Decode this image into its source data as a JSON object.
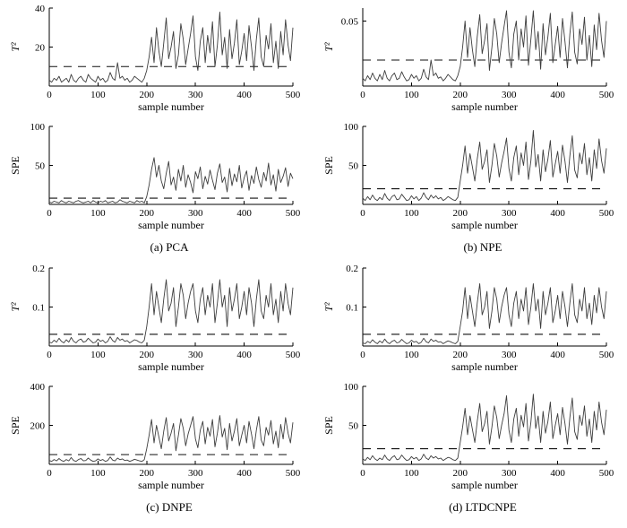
{
  "figure": {
    "captions": [
      "(a) PCA",
      "(b) NPE",
      "(c) DNPE",
      "(d) LTDCNPE"
    ],
    "line_color": "#3d3d3d",
    "threshold_color": "#111111"
  },
  "chart_data": [
    {
      "name": "pca-t2",
      "type": "line",
      "title": "",
      "ylabel": "T²",
      "ylabel_italic": true,
      "xlabel": "sample number",
      "xlim": [
        0,
        500
      ],
      "ylim": [
        0,
        40
      ],
      "xticks": [
        0,
        100,
        200,
        300,
        400,
        500
      ],
      "yticks": [
        20,
        40
      ],
      "threshold": 10,
      "threshold_style": "dashed",
      "x_step": 5,
      "values": [
        3,
        2,
        4,
        3,
        5,
        2,
        3,
        4,
        2,
        6,
        3,
        2,
        4,
        5,
        3,
        2,
        6,
        4,
        3,
        2,
        5,
        3,
        4,
        2,
        3,
        7,
        4,
        3,
        12,
        4,
        5,
        3,
        4,
        2,
        3,
        5,
        4,
        3,
        2,
        4,
        8,
        15,
        25,
        12,
        30,
        18,
        10,
        22,
        35,
        14,
        20,
        28,
        9,
        16,
        32,
        24,
        11,
        19,
        27,
        36,
        15,
        8,
        23,
        30,
        12,
        26,
        17,
        33,
        10,
        21,
        38,
        16,
        25,
        9,
        29,
        14,
        22,
        34,
        11,
        18,
        27,
        13,
        31,
        20,
        8,
        24,
        35,
        15,
        10,
        26,
        19,
        32,
        12,
        23,
        9,
        28,
        16,
        34,
        21,
        13,
        30
      ]
    },
    {
      "name": "pca-spe",
      "type": "line",
      "title": "",
      "ylabel": "SPE",
      "ylabel_italic": false,
      "xlabel": "sample number",
      "xlim": [
        0,
        500
      ],
      "ylim": [
        0,
        100
      ],
      "xticks": [
        0,
        100,
        200,
        300,
        400,
        500
      ],
      "yticks": [
        50,
        100
      ],
      "threshold": 8,
      "threshold_style": "dashed",
      "x_step": 5,
      "values": [
        3,
        2,
        4,
        3,
        2,
        5,
        3,
        2,
        4,
        3,
        2,
        4,
        5,
        3,
        2,
        3,
        4,
        2,
        5,
        3,
        2,
        4,
        3,
        5,
        2,
        3,
        4,
        2,
        3,
        6,
        4,
        3,
        2,
        4,
        3,
        2,
        5,
        3,
        4,
        2,
        10,
        25,
        45,
        60,
        35,
        50,
        30,
        20,
        40,
        55,
        25,
        35,
        18,
        45,
        30,
        50,
        22,
        38,
        28,
        15,
        42,
        33,
        48,
        20,
        36,
        26,
        44,
        31,
        19,
        40,
        52,
        28,
        35,
        16,
        46,
        24,
        39,
        29,
        50,
        21,
        34,
        43,
        18,
        37,
        27,
        48,
        32,
        22,
        41,
        30,
        53,
        25,
        38,
        17,
        45,
        28,
        36,
        47,
        23,
        40,
        33
      ]
    },
    {
      "name": "npe-t2",
      "type": "line",
      "title": "",
      "ylabel": "T²",
      "ylabel_italic": true,
      "xlabel": "sample number",
      "xlim": [
        0,
        500
      ],
      "ylim": [
        0,
        0.06
      ],
      "xticks": [
        0,
        100,
        200,
        300,
        400,
        500
      ],
      "yticks": [
        0.05
      ],
      "threshold": 0.02,
      "threshold_style": "dashed",
      "x_step": 5,
      "values": [
        0.006,
        0.004,
        0.008,
        0.005,
        0.01,
        0.006,
        0.004,
        0.009,
        0.005,
        0.012,
        0.006,
        0.004,
        0.008,
        0.01,
        0.005,
        0.006,
        0.011,
        0.007,
        0.004,
        0.005,
        0.009,
        0.006,
        0.008,
        0.004,
        0.006,
        0.013,
        0.007,
        0.005,
        0.02,
        0.008,
        0.01,
        0.006,
        0.007,
        0.004,
        0.006,
        0.009,
        0.007,
        0.005,
        0.004,
        0.008,
        0.015,
        0.03,
        0.05,
        0.022,
        0.045,
        0.028,
        0.015,
        0.038,
        0.055,
        0.025,
        0.035,
        0.048,
        0.012,
        0.03,
        0.052,
        0.04,
        0.018,
        0.033,
        0.046,
        0.058,
        0.026,
        0.014,
        0.04,
        0.05,
        0.02,
        0.044,
        0.03,
        0.054,
        0.016,
        0.036,
        0.058,
        0.028,
        0.042,
        0.013,
        0.048,
        0.024,
        0.038,
        0.056,
        0.018,
        0.032,
        0.046,
        0.022,
        0.052,
        0.034,
        0.014,
        0.04,
        0.057,
        0.026,
        0.017,
        0.044,
        0.032,
        0.053,
        0.02,
        0.039,
        0.015,
        0.047,
        0.028,
        0.056,
        0.035,
        0.022,
        0.05
      ]
    },
    {
      "name": "npe-spe",
      "type": "line",
      "title": "",
      "ylabel": "SPE",
      "ylabel_italic": false,
      "xlabel": "sample number",
      "xlim": [
        0,
        500
      ],
      "ylim": [
        0,
        100
      ],
      "xticks": [
        0,
        100,
        200,
        300,
        400,
        500
      ],
      "yticks": [
        50,
        100
      ],
      "threshold": 20,
      "threshold_style": "dashed",
      "x_step": 5,
      "values": [
        8,
        5,
        10,
        6,
        12,
        7,
        5,
        9,
        6,
        14,
        8,
        5,
        10,
        12,
        6,
        7,
        13,
        9,
        5,
        6,
        11,
        7,
        10,
        5,
        8,
        15,
        9,
        6,
        12,
        8,
        11,
        7,
        9,
        5,
        7,
        10,
        8,
        6,
        5,
        9,
        30,
        50,
        75,
        40,
        65,
        48,
        30,
        58,
        80,
        45,
        55,
        70,
        28,
        50,
        78,
        62,
        35,
        53,
        68,
        85,
        46,
        30,
        60,
        75,
        38,
        66,
        50,
        80,
        32,
        56,
        95,
        48,
        64,
        30,
        70,
        42,
        58,
        82,
        35,
        52,
        68,
        40,
        76,
        55,
        28,
        62,
        88,
        44,
        34,
        66,
        52,
        78,
        38,
        60,
        30,
        70,
        46,
        84,
        56,
        40,
        72
      ]
    },
    {
      "name": "dnpe-t2",
      "type": "line",
      "title": "",
      "ylabel": "T²",
      "ylabel_italic": true,
      "xlabel": "sample number",
      "xlim": [
        0,
        500
      ],
      "ylim": [
        0,
        0.2
      ],
      "xticks": [
        0,
        100,
        200,
        300,
        400,
        500
      ],
      "yticks": [
        0.1,
        0.2
      ],
      "threshold": 0.03,
      "threshold_style": "dashed",
      "x_step": 5,
      "values": [
        0.01,
        0.008,
        0.015,
        0.01,
        0.02,
        0.012,
        0.008,
        0.016,
        0.01,
        0.022,
        0.012,
        0.008,
        0.015,
        0.018,
        0.01,
        0.012,
        0.02,
        0.014,
        0.008,
        0.01,
        0.018,
        0.012,
        0.015,
        0.008,
        0.012,
        0.024,
        0.014,
        0.01,
        0.022,
        0.015,
        0.018,
        0.012,
        0.014,
        0.008,
        0.012,
        0.016,
        0.014,
        0.01,
        0.008,
        0.015,
        0.05,
        0.1,
        0.16,
        0.08,
        0.14,
        0.1,
        0.06,
        0.12,
        0.17,
        0.09,
        0.11,
        0.15,
        0.05,
        0.1,
        0.16,
        0.13,
        0.07,
        0.11,
        0.14,
        0.16,
        0.09,
        0.06,
        0.12,
        0.15,
        0.08,
        0.13,
        0.1,
        0.16,
        0.06,
        0.11,
        0.17,
        0.1,
        0.13,
        0.05,
        0.15,
        0.09,
        0.12,
        0.16,
        0.07,
        0.1,
        0.14,
        0.08,
        0.15,
        0.11,
        0.05,
        0.12,
        0.17,
        0.09,
        0.07,
        0.13,
        0.1,
        0.16,
        0.08,
        0.12,
        0.06,
        0.14,
        0.09,
        0.16,
        0.11,
        0.08,
        0.15
      ]
    },
    {
      "name": "dnpe-spe",
      "type": "line",
      "title": "",
      "ylabel": "SPE",
      "ylabel_italic": false,
      "xlabel": "sample number",
      "xlim": [
        0,
        500
      ],
      "ylim": [
        0,
        400
      ],
      "xticks": [
        0,
        100,
        200,
        300,
        400,
        500
      ],
      "yticks": [
        200,
        400
      ],
      "threshold": 50,
      "threshold_style": "dashed",
      "x_step": 5,
      "values": [
        20,
        15,
        25,
        18,
        30,
        20,
        15,
        25,
        18,
        35,
        20,
        15,
        25,
        30,
        18,
        20,
        32,
        22,
        15,
        18,
        28,
        20,
        25,
        15,
        20,
        38,
        22,
        18,
        32,
        24,
        28,
        20,
        22,
        15,
        20,
        26,
        22,
        18,
        15,
        24,
        80,
        150,
        230,
        110,
        200,
        140,
        80,
        170,
        240,
        120,
        160,
        210,
        70,
        150,
        235,
        185,
        95,
        155,
        200,
        245,
        130,
        85,
        175,
        220,
        105,
        190,
        145,
        230,
        90,
        160,
        250,
        140,
        185,
        75,
        210,
        120,
        170,
        235,
        95,
        150,
        200,
        110,
        220,
        155,
        80,
        175,
        245,
        125,
        95,
        190,
        150,
        225,
        105,
        170,
        85,
        205,
        130,
        240,
        160,
        110,
        215
      ]
    },
    {
      "name": "ltdcnpe-t2",
      "type": "line",
      "title": "",
      "ylabel": "T²",
      "ylabel_italic": true,
      "xlabel": "sample number",
      "xlim": [
        0,
        500
      ],
      "ylim": [
        0,
        0.2
      ],
      "xticks": [
        0,
        100,
        200,
        300,
        400,
        500
      ],
      "yticks": [
        0.1,
        0.2
      ],
      "threshold": 0.03,
      "threshold_style": "dashed",
      "x_step": 5,
      "values": [
        0.008,
        0.006,
        0.012,
        0.008,
        0.016,
        0.01,
        0.006,
        0.013,
        0.008,
        0.018,
        0.01,
        0.006,
        0.012,
        0.015,
        0.008,
        0.01,
        0.017,
        0.011,
        0.006,
        0.008,
        0.015,
        0.01,
        0.012,
        0.006,
        0.01,
        0.02,
        0.011,
        0.008,
        0.018,
        0.012,
        0.015,
        0.01,
        0.011,
        0.006,
        0.01,
        0.013,
        0.011,
        0.008,
        0.006,
        0.012,
        0.05,
        0.09,
        0.15,
        0.07,
        0.13,
        0.09,
        0.05,
        0.11,
        0.16,
        0.08,
        0.1,
        0.14,
        0.045,
        0.09,
        0.15,
        0.12,
        0.06,
        0.1,
        0.13,
        0.15,
        0.08,
        0.05,
        0.11,
        0.14,
        0.07,
        0.12,
        0.09,
        0.15,
        0.055,
        0.1,
        0.16,
        0.09,
        0.12,
        0.045,
        0.14,
        0.08,
        0.11,
        0.15,
        0.06,
        0.09,
        0.13,
        0.07,
        0.14,
        0.1,
        0.05,
        0.11,
        0.16,
        0.08,
        0.06,
        0.12,
        0.09,
        0.15,
        0.07,
        0.11,
        0.055,
        0.13,
        0.085,
        0.15,
        0.1,
        0.07,
        0.14
      ]
    },
    {
      "name": "ltdcnpe-spe",
      "type": "line",
      "title": "",
      "ylabel": "SPE",
      "ylabel_italic": false,
      "xlabel": "sample number",
      "xlim": [
        0,
        500
      ],
      "ylim": [
        0,
        100
      ],
      "xticks": [
        0,
        100,
        200,
        300,
        400,
        500
      ],
      "yticks": [
        50,
        100
      ],
      "threshold": 20,
      "threshold_style": "dashed",
      "x_step": 5,
      "values": [
        7,
        5,
        9,
        6,
        11,
        7,
        5,
        8,
        6,
        12,
        7,
        5,
        9,
        11,
        6,
        7,
        12,
        8,
        5,
        6,
        10,
        7,
        9,
        5,
        7,
        13,
        8,
        6,
        11,
        8,
        10,
        7,
        8,
        5,
        7,
        9,
        8,
        6,
        5,
        8,
        28,
        48,
        72,
        38,
        62,
        45,
        28,
        55,
        78,
        42,
        52,
        68,
        26,
        48,
        75,
        60,
        33,
        50,
        65,
        88,
        44,
        28,
        58,
        72,
        36,
        63,
        48,
        78,
        30,
        54,
        90,
        46,
        62,
        28,
        68,
        40,
        55,
        80,
        33,
        50,
        65,
        38,
        73,
        52,
        26,
        60,
        85,
        42,
        32,
        63,
        50,
        75,
        36,
        58,
        28,
        68,
        44,
        80,
        54,
        38,
        70
      ]
    }
  ]
}
